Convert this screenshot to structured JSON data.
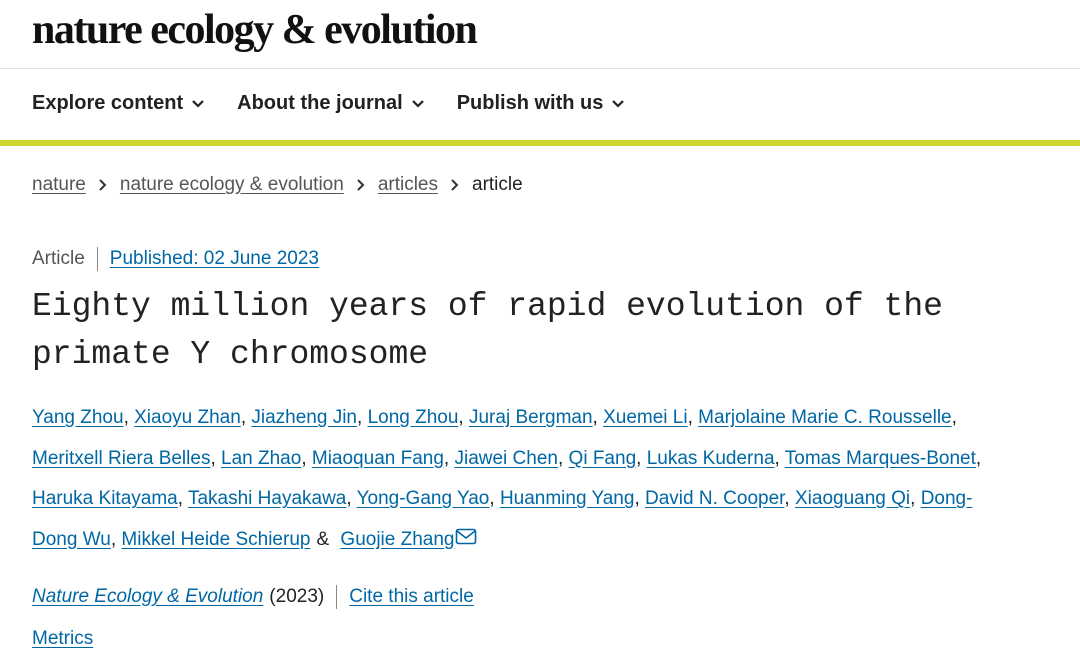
{
  "header": {
    "logo": "nature ecology & evolution"
  },
  "nav": [
    "Explore content",
    "About the journal",
    "Publish with us"
  ],
  "breadcrumbs": [
    "nature",
    "nature ecology & evolution",
    "articles",
    "article"
  ],
  "article": {
    "type": "Article",
    "published": "Published: 02 June 2023",
    "title": "Eighty million years of rapid evolution of the primate Y chromosome",
    "authors": [
      {
        "name": "Yang Zhou",
        "sep": ","
      },
      {
        "name": "Xiaoyu Zhan",
        "sep": ","
      },
      {
        "name": "Jiazheng Jin",
        "sep": ","
      },
      {
        "name": "Long Zhou",
        "sep": ","
      },
      {
        "name": "Juraj Bergman",
        "sep": ","
      },
      {
        "name": "Xuemei Li",
        "sep": ","
      },
      {
        "name": "Marjolaine Marie C. Rousselle",
        "sep": ","
      },
      {
        "name": "Meritxell Riera Belles",
        "sep": ","
      },
      {
        "name": "Lan Zhao",
        "sep": ","
      },
      {
        "name": "Miaoquan Fang",
        "sep": ","
      },
      {
        "name": "Jiawei Chen",
        "sep": ","
      },
      {
        "name": "Qi Fang",
        "sep": ","
      },
      {
        "name": "Lukas Kuderna",
        "sep": ","
      },
      {
        "name": "Tomas Marques-Bonet",
        "sep": ","
      },
      {
        "name": "Haruka Kitayama",
        "sep": ","
      },
      {
        "name": "Takashi Hayakawa",
        "sep": ","
      },
      {
        "name": "Yong-Gang Yao",
        "sep": ","
      },
      {
        "name": "Huanming Yang",
        "sep": ","
      },
      {
        "name": "David N. Cooper",
        "sep": ","
      },
      {
        "name": "Xiaoguang Qi",
        "sep": ","
      },
      {
        "name": "Dong-Dong Wu",
        "sep": ","
      },
      {
        "name": "Mikkel Heide Schierup",
        "sep": "&"
      },
      {
        "name": "Guojie Zhang",
        "sep": null
      }
    ],
    "journal": "Nature Ecology & Evolution",
    "year": "(2023)",
    "cite": "Cite this article",
    "metrics": "Metrics"
  }
}
